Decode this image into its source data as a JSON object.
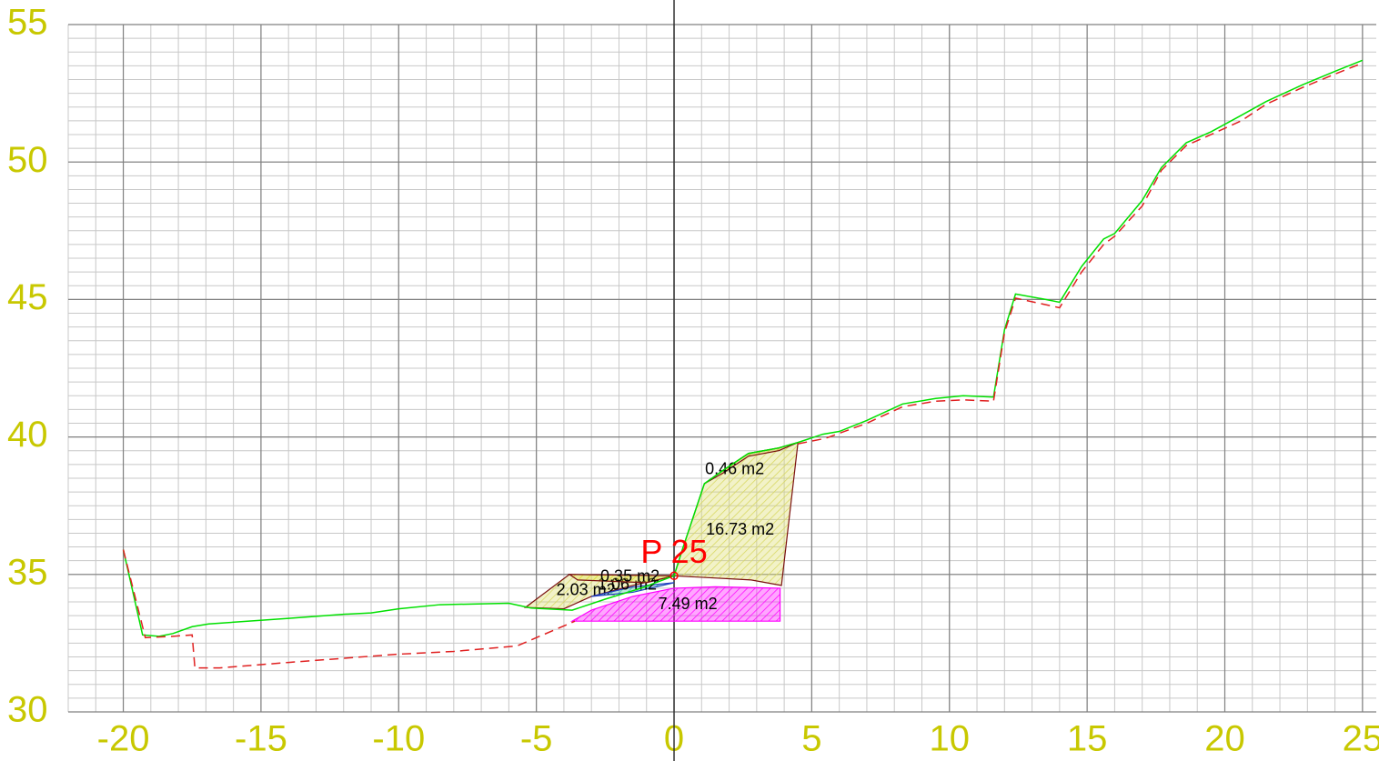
{
  "chart_data": {
    "type": "line",
    "xlim": [
      -22,
      25.5
    ],
    "ylim": [
      30,
      55
    ],
    "xticks": [
      -20,
      -15,
      -10,
      -5,
      0,
      5,
      10,
      15,
      20,
      25
    ],
    "yticks": [
      30,
      35,
      40,
      45,
      50,
      55
    ],
    "grid": true,
    "minor_grid": {
      "x": 1,
      "y": 0.5
    },
    "tick_color": "#c8c800",
    "series": [
      {
        "color": "#00e000",
        "dash": false,
        "x": [
          -20,
          -19.3,
          -18.7,
          -18.2,
          -17.5,
          -16.9,
          -14,
          -12,
          -11,
          -10,
          -8.5,
          -6,
          -5.2,
          -3.7,
          -2.5,
          -1.2,
          0,
          0.3,
          1.1,
          1.8,
          2.7,
          3.8,
          4.5,
          5.4,
          6,
          7,
          8.3,
          9.5,
          10.5,
          11.6,
          12,
          12.4,
          13.5,
          14,
          14.8,
          15.6,
          16,
          17,
          17.7,
          18.6,
          19.5,
          20.6,
          21.5,
          22.8,
          24,
          25
        ],
        "values": [
          35.9,
          32.8,
          32.75,
          32.85,
          33.1,
          33.2,
          33.4,
          33.55,
          33.6,
          33.75,
          33.9,
          33.95,
          33.78,
          33.7,
          34.1,
          34.5,
          34.95,
          35.9,
          38.3,
          38.8,
          39.4,
          39.6,
          39.8,
          40.1,
          40.2,
          40.6,
          41.2,
          41.4,
          41.5,
          41.45,
          43.9,
          45.2,
          45.0,
          44.9,
          46.2,
          47.2,
          47.4,
          48.6,
          49.8,
          50.7,
          51.1,
          51.7,
          52.2,
          52.8,
          53.3,
          53.7
        ]
      },
      {
        "color": "#e02020",
        "dash": true,
        "x": [
          -20,
          -19.2,
          -18.2,
          -17.5,
          -17.4,
          -16.5,
          -14,
          -10,
          -8,
          -5.7,
          -3.6,
          0,
          4.5,
          5.5,
          7,
          8.3,
          9.5,
          10.5,
          11.6,
          12,
          12.4,
          14,
          14.8,
          15.6,
          16,
          17,
          17.7,
          18.6,
          19.5,
          20.6,
          21.5,
          22.8,
          24,
          25
        ],
        "values": [
          35.9,
          32.7,
          32.75,
          32.8,
          31.6,
          31.6,
          31.8,
          32.1,
          32.2,
          32.4,
          33.3,
          null,
          39.75,
          39.95,
          40.5,
          41.1,
          41.3,
          41.35,
          41.3,
          43.8,
          45.05,
          44.7,
          46.0,
          47.0,
          47.3,
          48.4,
          49.7,
          50.6,
          51.0,
          51.5,
          52.1,
          52.7,
          53.2,
          53.6
        ]
      }
    ],
    "areas": [
      {
        "label": "7.49 m2",
        "fill": "#ff00ff",
        "color": "#ff00ff",
        "x": [
          -3.7,
          3.85,
          3.85,
          1.5,
          0,
          -1.5,
          -3.0
        ],
        "y": [
          33.3,
          33.3,
          34.5,
          34.55,
          34.5,
          34.2,
          33.7
        ]
      },
      {
        "label": "16.73 m2",
        "fill": "#d8d860",
        "color": "#7a1010",
        "x": [
          0,
          0.3,
          1.1,
          1.8,
          2.7,
          3.8,
          4.5,
          3.9,
          2.8,
          0
        ],
        "y": [
          34.95,
          35.9,
          38.3,
          38.8,
          39.4,
          39.6,
          39.8,
          34.6,
          34.8,
          34.95
        ]
      },
      {
        "label": "0.46 m2",
        "fill": "#c8c840",
        "color": "#7a1010",
        "x": [
          1.1,
          1.8,
          2.7,
          3.8,
          4.5,
          3.8,
          2.7,
          1.8
        ],
        "y": [
          38.3,
          38.8,
          39.4,
          39.6,
          39.8,
          39.5,
          39.3,
          38.7
        ]
      },
      {
        "label": "2.03 m2",
        "fill": "#d8d860",
        "color": "#7a1010",
        "x": [
          -5.4,
          -3.8,
          0,
          -1.5,
          -3.0,
          -4.0
        ],
        "y": [
          33.8,
          35.0,
          34.95,
          34.6,
          34.2,
          33.75
        ]
      },
      {
        "label": "1.06 m2",
        "fill": "#40c0a0",
        "color": "#2040c0",
        "x": [
          -3.0,
          -1.5,
          0,
          -1.5
        ],
        "y": [
          34.2,
          34.55,
          34.7,
          34.35
        ]
      },
      {
        "label": "0.35 m2",
        "fill": "#e0e040",
        "color": "#7a1010",
        "x": [
          -3.8,
          0,
          -1,
          -3.5
        ],
        "y": [
          35.0,
          34.95,
          34.7,
          34.8
        ]
      }
    ],
    "annotations": [
      {
        "text": "P 25",
        "x": 0,
        "y": 34.95,
        "color": "#ff0000"
      }
    ]
  }
}
